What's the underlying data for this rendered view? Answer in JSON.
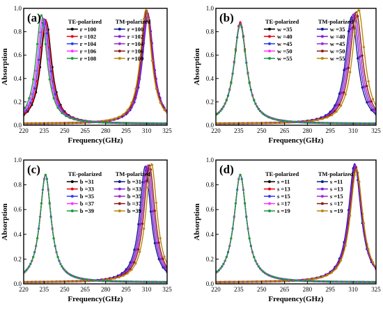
{
  "figure": {
    "xlabel": "Frequency(GHz)",
    "ylabel": "Absorption",
    "xlim": [
      220,
      325
    ],
    "ylim": [
      0,
      1.0
    ],
    "x_ticks": [
      220,
      235,
      250,
      265,
      280,
      295,
      310,
      325
    ],
    "y_ticks": [
      "0.0",
      "0.2",
      "0.4",
      "0.6",
      "0.8",
      "1.0"
    ],
    "grid": false,
    "legend_te_title": "TE-polarized",
    "legend_tm_title": "TM-polarized",
    "colors": [
      "#000000",
      "#e8000b",
      "#2b3cf2",
      "#ff33ff",
      "#1a9a3a"
    ],
    "tm_colors": [
      "#0b1a8c",
      "#7d1fd6",
      "#a12bd1",
      "#8b1a1a",
      "#b8860b"
    ]
  },
  "chart_data": [
    {
      "type": "line",
      "panel_label": "(a)",
      "param": "r",
      "te": [
        {
          "name": "r =100",
          "peak_x": 236.5,
          "peak_y": 0.89
        },
        {
          "name": "r =102",
          "peak_x": 236.0,
          "peak_y": 0.9
        },
        {
          "name": "r =104",
          "peak_x": 235.0,
          "peak_y": 0.91
        },
        {
          "name": "r =106",
          "peak_x": 234.0,
          "peak_y": 0.92
        },
        {
          "name": "r =108",
          "peak_x": 233.0,
          "peak_y": 0.94
        }
      ],
      "tm": [
        {
          "name": "r =100",
          "peak_x": 311.0,
          "peak_y": 0.93
        },
        {
          "name": "r =102",
          "peak_x": 311.0,
          "peak_y": 0.95
        },
        {
          "name": "r =104",
          "peak_x": 310.5,
          "peak_y": 0.97
        },
        {
          "name": "r =106",
          "peak_x": 310.0,
          "peak_y": 0.98
        },
        {
          "name": "r =108",
          "peak_x": 309.5,
          "peak_y": 0.99
        }
      ]
    },
    {
      "type": "line",
      "panel_label": "(b)",
      "param": "w",
      "te": [
        {
          "name": "w =35",
          "peak_x": 236.0,
          "peak_y": 0.88
        },
        {
          "name": "w =40",
          "peak_x": 236.0,
          "peak_y": 0.88
        },
        {
          "name": "w =45",
          "peak_x": 236.0,
          "peak_y": 0.87
        },
        {
          "name": "w =50",
          "peak_x": 236.0,
          "peak_y": 0.87
        },
        {
          "name": "w =55",
          "peak_x": 236.0,
          "peak_y": 0.86
        }
      ],
      "tm": [
        {
          "name": "w =35",
          "peak_x": 309.0,
          "peak_y": 0.93
        },
        {
          "name": "w =40",
          "peak_x": 310.0,
          "peak_y": 0.95
        },
        {
          "name": "w =45",
          "peak_x": 311.0,
          "peak_y": 0.96
        },
        {
          "name": "w =50",
          "peak_x": 312.0,
          "peak_y": 0.97
        },
        {
          "name": "w =55",
          "peak_x": 313.5,
          "peak_y": 0.99
        }
      ]
    },
    {
      "type": "line",
      "panel_label": "(c)",
      "param": "b",
      "te": [
        {
          "name": "b =31",
          "peak_x": 236.0,
          "peak_y": 0.88
        },
        {
          "name": "b =33",
          "peak_x": 236.0,
          "peak_y": 0.88
        },
        {
          "name": "b =35",
          "peak_x": 236.0,
          "peak_y": 0.88
        },
        {
          "name": "b =37",
          "peak_x": 236.0,
          "peak_y": 0.88
        },
        {
          "name": "b =39",
          "peak_x": 236.0,
          "peak_y": 0.88
        }
      ],
      "tm": [
        {
          "name": "b =31",
          "peak_x": 309.0,
          "peak_y": 0.95
        },
        {
          "name": "b =33",
          "peak_x": 310.0,
          "peak_y": 0.95
        },
        {
          "name": "b =35",
          "peak_x": 311.0,
          "peak_y": 0.96
        },
        {
          "name": "b =37",
          "peak_x": 312.0,
          "peak_y": 0.96
        },
        {
          "name": "b =39",
          "peak_x": 313.5,
          "peak_y": 0.97
        }
      ]
    },
    {
      "type": "line",
      "panel_label": "(d)",
      "param": "s",
      "te": [
        {
          "name": "s =11",
          "peak_x": 236.0,
          "peak_y": 0.88
        },
        {
          "name": "s =13",
          "peak_x": 236.0,
          "peak_y": 0.88
        },
        {
          "name": "s =15",
          "peak_x": 236.0,
          "peak_y": 0.88
        },
        {
          "name": "s =17",
          "peak_x": 236.0,
          "peak_y": 0.88
        },
        {
          "name": "s =19",
          "peak_x": 236.0,
          "peak_y": 0.88
        }
      ],
      "tm": [
        {
          "name": "s =11",
          "peak_x": 311.0,
          "peak_y": 0.97
        },
        {
          "name": "s =13",
          "peak_x": 311.3,
          "peak_y": 0.96
        },
        {
          "name": "s =15",
          "peak_x": 311.6,
          "peak_y": 0.95
        },
        {
          "name": "s =17",
          "peak_x": 311.9,
          "peak_y": 0.94
        },
        {
          "name": "s =19",
          "peak_x": 312.2,
          "peak_y": 0.93
        }
      ]
    }
  ]
}
